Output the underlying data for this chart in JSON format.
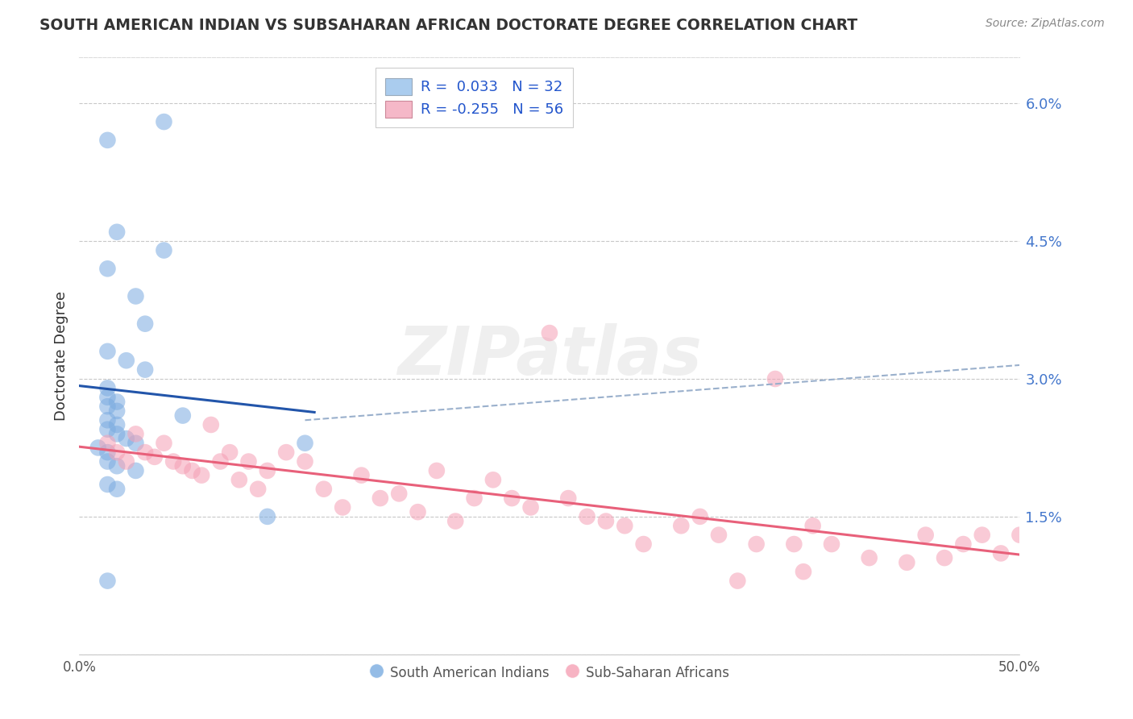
{
  "title": "SOUTH AMERICAN INDIAN VS SUBSAHARAN AFRICAN DOCTORATE DEGREE CORRELATION CHART",
  "source": "Source: ZipAtlas.com",
  "ylabel": "Doctorate Degree",
  "xlim": [
    0.0,
    50.0
  ],
  "ylim": [
    0.0,
    6.5
  ],
  "ytick_vals": [
    0.0,
    1.5,
    3.0,
    4.5,
    6.0
  ],
  "ytick_labels": [
    "",
    "1.5%",
    "3.0%",
    "4.5%",
    "6.0%"
  ],
  "xtick_vals": [
    0,
    10,
    20,
    30,
    40,
    50
  ],
  "xtick_labels": [
    "0.0%",
    "",
    "",
    "",
    "",
    "50.0%"
  ],
  "grid_color": "#c8c8c8",
  "background_color": "#ffffff",
  "blue_dot_color": "#7aabe0",
  "pink_dot_color": "#f5a0b5",
  "blue_line_color": "#2255aa",
  "pink_line_color": "#e8607a",
  "dashed_line_color": "#9ab0cc",
  "R_blue": 0.033,
  "N_blue": 32,
  "R_pink": -0.255,
  "N_pink": 56,
  "legend_label_blue": "South American Indians",
  "legend_label_pink": "Sub-Saharan Africans",
  "blue_legend_color": "#aaccee",
  "pink_legend_color": "#f5b8c8",
  "legend_text_color": "#2255cc",
  "blue_points_x": [
    1.5,
    4.5,
    2.0,
    4.5,
    1.5,
    3.0,
    3.5,
    1.5,
    2.5,
    3.5,
    1.5,
    1.5,
    2.0,
    1.5,
    2.0,
    1.5,
    2.0,
    1.5,
    2.0,
    2.5,
    3.0,
    1.0,
    1.5,
    1.5,
    5.5,
    2.0,
    12.0,
    3.0,
    1.5,
    2.0,
    10.0,
    1.5
  ],
  "blue_points_y": [
    5.6,
    5.8,
    4.6,
    4.4,
    4.2,
    3.9,
    3.6,
    3.3,
    3.2,
    3.1,
    2.9,
    2.8,
    2.75,
    2.7,
    2.65,
    2.55,
    2.5,
    2.45,
    2.4,
    2.35,
    2.3,
    2.25,
    2.2,
    2.1,
    2.6,
    2.05,
    2.3,
    2.0,
    1.85,
    1.8,
    1.5,
    0.8
  ],
  "pink_points_x": [
    1.5,
    2.0,
    2.5,
    3.0,
    3.5,
    4.0,
    4.5,
    5.0,
    5.5,
    6.0,
    6.5,
    7.0,
    7.5,
    8.0,
    8.5,
    9.0,
    9.5,
    10.0,
    11.0,
    12.0,
    13.0,
    14.0,
    15.0,
    16.0,
    17.0,
    18.0,
    19.0,
    20.0,
    21.0,
    22.0,
    23.0,
    24.0,
    25.0,
    26.0,
    27.0,
    28.0,
    29.0,
    30.0,
    32.0,
    33.0,
    34.0,
    36.0,
    37.0,
    38.0,
    39.0,
    40.0,
    42.0,
    44.0,
    45.0,
    46.0,
    47.0,
    48.0,
    49.0,
    50.0,
    35.0,
    38.5
  ],
  "pink_points_y": [
    2.3,
    2.2,
    2.1,
    2.4,
    2.2,
    2.15,
    2.3,
    2.1,
    2.05,
    2.0,
    1.95,
    2.5,
    2.1,
    2.2,
    1.9,
    2.1,
    1.8,
    2.0,
    2.2,
    2.1,
    1.8,
    1.6,
    1.95,
    1.7,
    1.75,
    1.55,
    2.0,
    1.45,
    1.7,
    1.9,
    1.7,
    1.6,
    3.5,
    1.7,
    1.5,
    1.45,
    1.4,
    1.2,
    1.4,
    1.5,
    1.3,
    1.2,
    3.0,
    1.2,
    1.4,
    1.2,
    1.05,
    1.0,
    1.3,
    1.05,
    1.2,
    1.3,
    1.1,
    1.3,
    0.8,
    0.9
  ]
}
